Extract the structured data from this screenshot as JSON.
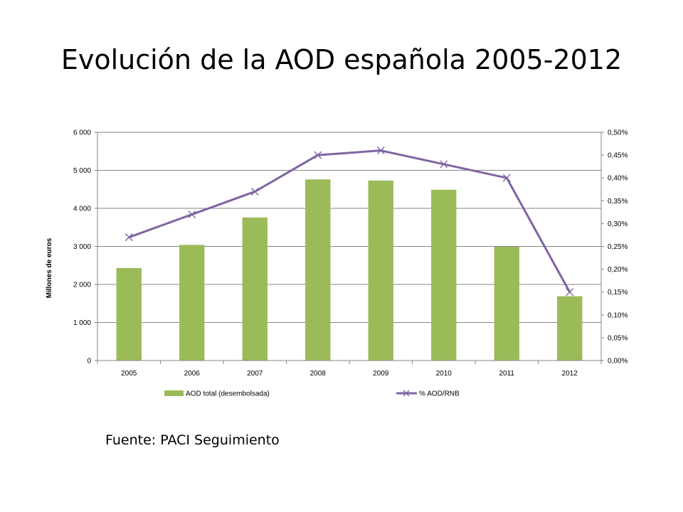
{
  "slide": {
    "title": "Evolución de la AOD española 2005-2012",
    "source": "Fuente: PACI Seguimiento"
  },
  "chart_data": {
    "type": "bar",
    "categories": [
      "2005",
      "2006",
      "2007",
      "2008",
      "2009",
      "2010",
      "2011",
      "2012"
    ],
    "series": [
      {
        "name": "AOD total (desembolsada)",
        "type": "bar",
        "axis": "left",
        "color": "#9BBB59",
        "values": [
          2430,
          3040,
          3760,
          4760,
          4730,
          4490,
          2990,
          1690
        ]
      },
      {
        "name": "% AOD/RNB",
        "type": "line",
        "axis": "right",
        "marker": "x",
        "color": "#8064A2",
        "values": [
          0.27,
          0.32,
          0.37,
          0.45,
          0.46,
          0.43,
          0.4,
          0.15
        ]
      }
    ],
    "ylabel": "Millones de euros",
    "xlabel": "",
    "ylim": [
      0,
      6000
    ],
    "y_ticks": [
      "0",
      "1 000",
      "2 000",
      "3 000",
      "4 000",
      "5 000",
      "6 000"
    ],
    "y2lim": [
      0,
      0.5
    ],
    "y2_ticks": [
      "0,00%",
      "0,05%",
      "0,10%",
      "0,15%",
      "0,20%",
      "0,25%",
      "0,30%",
      "0,35%",
      "0,40%",
      "0,45%",
      "0,50%"
    ],
    "grid": true,
    "legend_position": "bottom"
  }
}
